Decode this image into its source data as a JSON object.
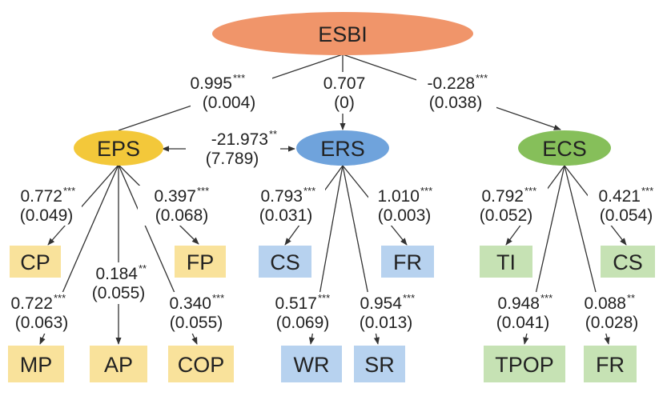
{
  "colors": {
    "root": "#f0956a",
    "eps": "#f3c83a",
    "ers": "#6fa3dc",
    "ecs": "#86bf5a",
    "eps_box": "#f9e29b",
    "ers_box": "#b7d2ef",
    "ecs_box": "#c6e2b4"
  },
  "nodes": {
    "root": "ESBI",
    "eps": "EPS",
    "ers": "ERS",
    "ecs": "ECS",
    "cp": "CP",
    "fp": "FP",
    "mp": "MP",
    "ap": "AP",
    "cop": "COP",
    "ers_cs": "CS",
    "ers_fr": "FR",
    "wr": "WR",
    "sr": "SR",
    "ti": "TI",
    "ecs_cs": "CS",
    "tpop": "TPOP",
    "ecs_fr": "FR"
  },
  "coefficients": {
    "esbi_eps": {
      "value": "0.995",
      "sig": "***",
      "se": "(0.004)"
    },
    "esbi_ers": {
      "value": "0.707",
      "sig": "",
      "se": "(0)"
    },
    "esbi_ecs": {
      "value": "-0.228",
      "sig": "***",
      "se": "(0.038)"
    },
    "eps_ers": {
      "value": "-21.973",
      "sig": "**",
      "se": "(7.789)"
    },
    "eps_cp": {
      "value": "0.772",
      "sig": "***",
      "se": "(0.049)"
    },
    "eps_fp": {
      "value": "0.397",
      "sig": "***",
      "se": "(0.068)"
    },
    "eps_ap": {
      "value": "0.184",
      "sig": "**",
      "se": "(0.055)"
    },
    "eps_mp": {
      "value": "0.722",
      "sig": "***",
      "se": "(0.063)"
    },
    "eps_cop": {
      "value": "0.340",
      "sig": "***",
      "se": "(0.055)"
    },
    "ers_cs": {
      "value": "0.793",
      "sig": "***",
      "se": "(0.031)"
    },
    "ers_fr": {
      "value": "1.010",
      "sig": "***",
      "se": "(0.003)"
    },
    "ers_wr": {
      "value": "0.517",
      "sig": "***",
      "se": "(0.069)"
    },
    "ers_sr": {
      "value": "0.954",
      "sig": "***",
      "se": "(0.013)"
    },
    "ecs_ti": {
      "value": "0.792",
      "sig": "***",
      "se": "(0.052)"
    },
    "ecs_cs": {
      "value": "0.421",
      "sig": "***",
      "se": "(0.054)"
    },
    "ecs_tpop": {
      "value": "0.948",
      "sig": "***",
      "se": "(0.041)"
    },
    "ecs_fr": {
      "value": "0.088",
      "sig": "**",
      "se": "(0.028)"
    }
  }
}
